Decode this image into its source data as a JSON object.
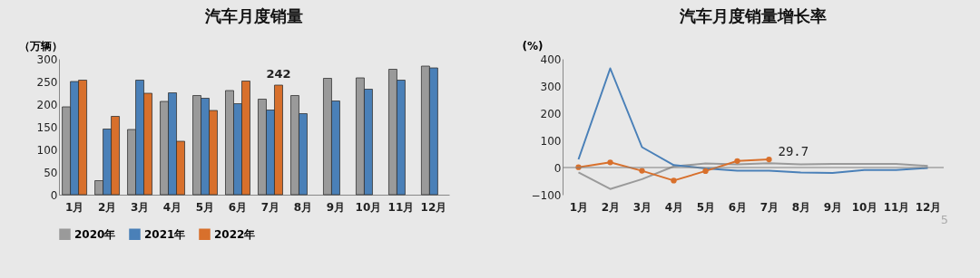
{
  "chart_data": [
    {
      "type": "bar",
      "title": "汽车月度销量",
      "ylabel": "（万辆）",
      "categories": [
        "1月",
        "2月",
        "3月",
        "4月",
        "5月",
        "6月",
        "7月",
        "8月",
        "9月",
        "10月",
        "11月",
        "12月"
      ],
      "ylim": [
        0,
        300
      ],
      "yticks": [
        0,
        50,
        100,
        150,
        200,
        250,
        300
      ],
      "legend": "bottom",
      "series": [
        {
          "name": "2020年",
          "color": "#9a9a9a",
          "values": [
            194,
            31,
            144,
            206,
            219,
            230,
            211,
            219,
            257,
            258,
            277,
            284
          ]
        },
        {
          "name": "2021年",
          "color": "#4a80b8",
          "values": [
            250,
            145,
            253,
            225,
            213,
            201,
            187,
            179,
            207,
            233,
            253,
            280
          ]
        },
        {
          "name": "2022年",
          "color": "#d8702c",
          "values": [
            253,
            173,
            224,
            118,
            186,
            251,
            242,
            null,
            null,
            null,
            null,
            null
          ],
          "value_labels": [
            null,
            null,
            null,
            null,
            null,
            null,
            "242",
            null,
            null,
            null,
            null,
            null
          ]
        }
      ]
    },
    {
      "type": "line",
      "title": "汽车月度销量增长率",
      "ylabel": "(%)",
      "categories": [
        "1月",
        "2月",
        "3月",
        "4月",
        "5月",
        "6月",
        "7月",
        "8月",
        "9月",
        "10月",
        "11月",
        "12月"
      ],
      "ylim": [
        -100,
        400
      ],
      "yticks": [
        -100,
        0,
        100,
        200,
        300,
        400
      ],
      "legend": "bottom",
      "ref_lines": [
        {
          "axis": "y",
          "value": 0,
          "label": null,
          "color": "#7f7f7f"
        }
      ],
      "annotations": [
        "5"
      ],
      "series": [
        {
          "name": "2020年",
          "color": "#a0a0a0",
          "marker": "none",
          "values": [
            -18,
            -79,
            -43,
            4,
            15,
            12,
            16,
            12,
            13,
            13,
            13,
            6
          ]
        },
        {
          "name": "2021年",
          "color": "#5a8ec0",
          "marker": "none",
          "values": [
            30,
            365,
            75,
            9,
            -3,
            -12,
            -12,
            -18,
            -20,
            -9,
            -9,
            -2
          ]
        },
        {
          "name": "2022年",
          "color": "#d8702c",
          "marker": "circle",
          "values": [
            1,
            19,
            -12,
            -48,
            -13,
            24,
            29.7,
            null,
            null,
            null,
            null,
            null
          ],
          "value_labels": [
            null,
            null,
            null,
            null,
            null,
            null,
            "29.7",
            null,
            null,
            null,
            null,
            null
          ]
        }
      ]
    }
  ]
}
